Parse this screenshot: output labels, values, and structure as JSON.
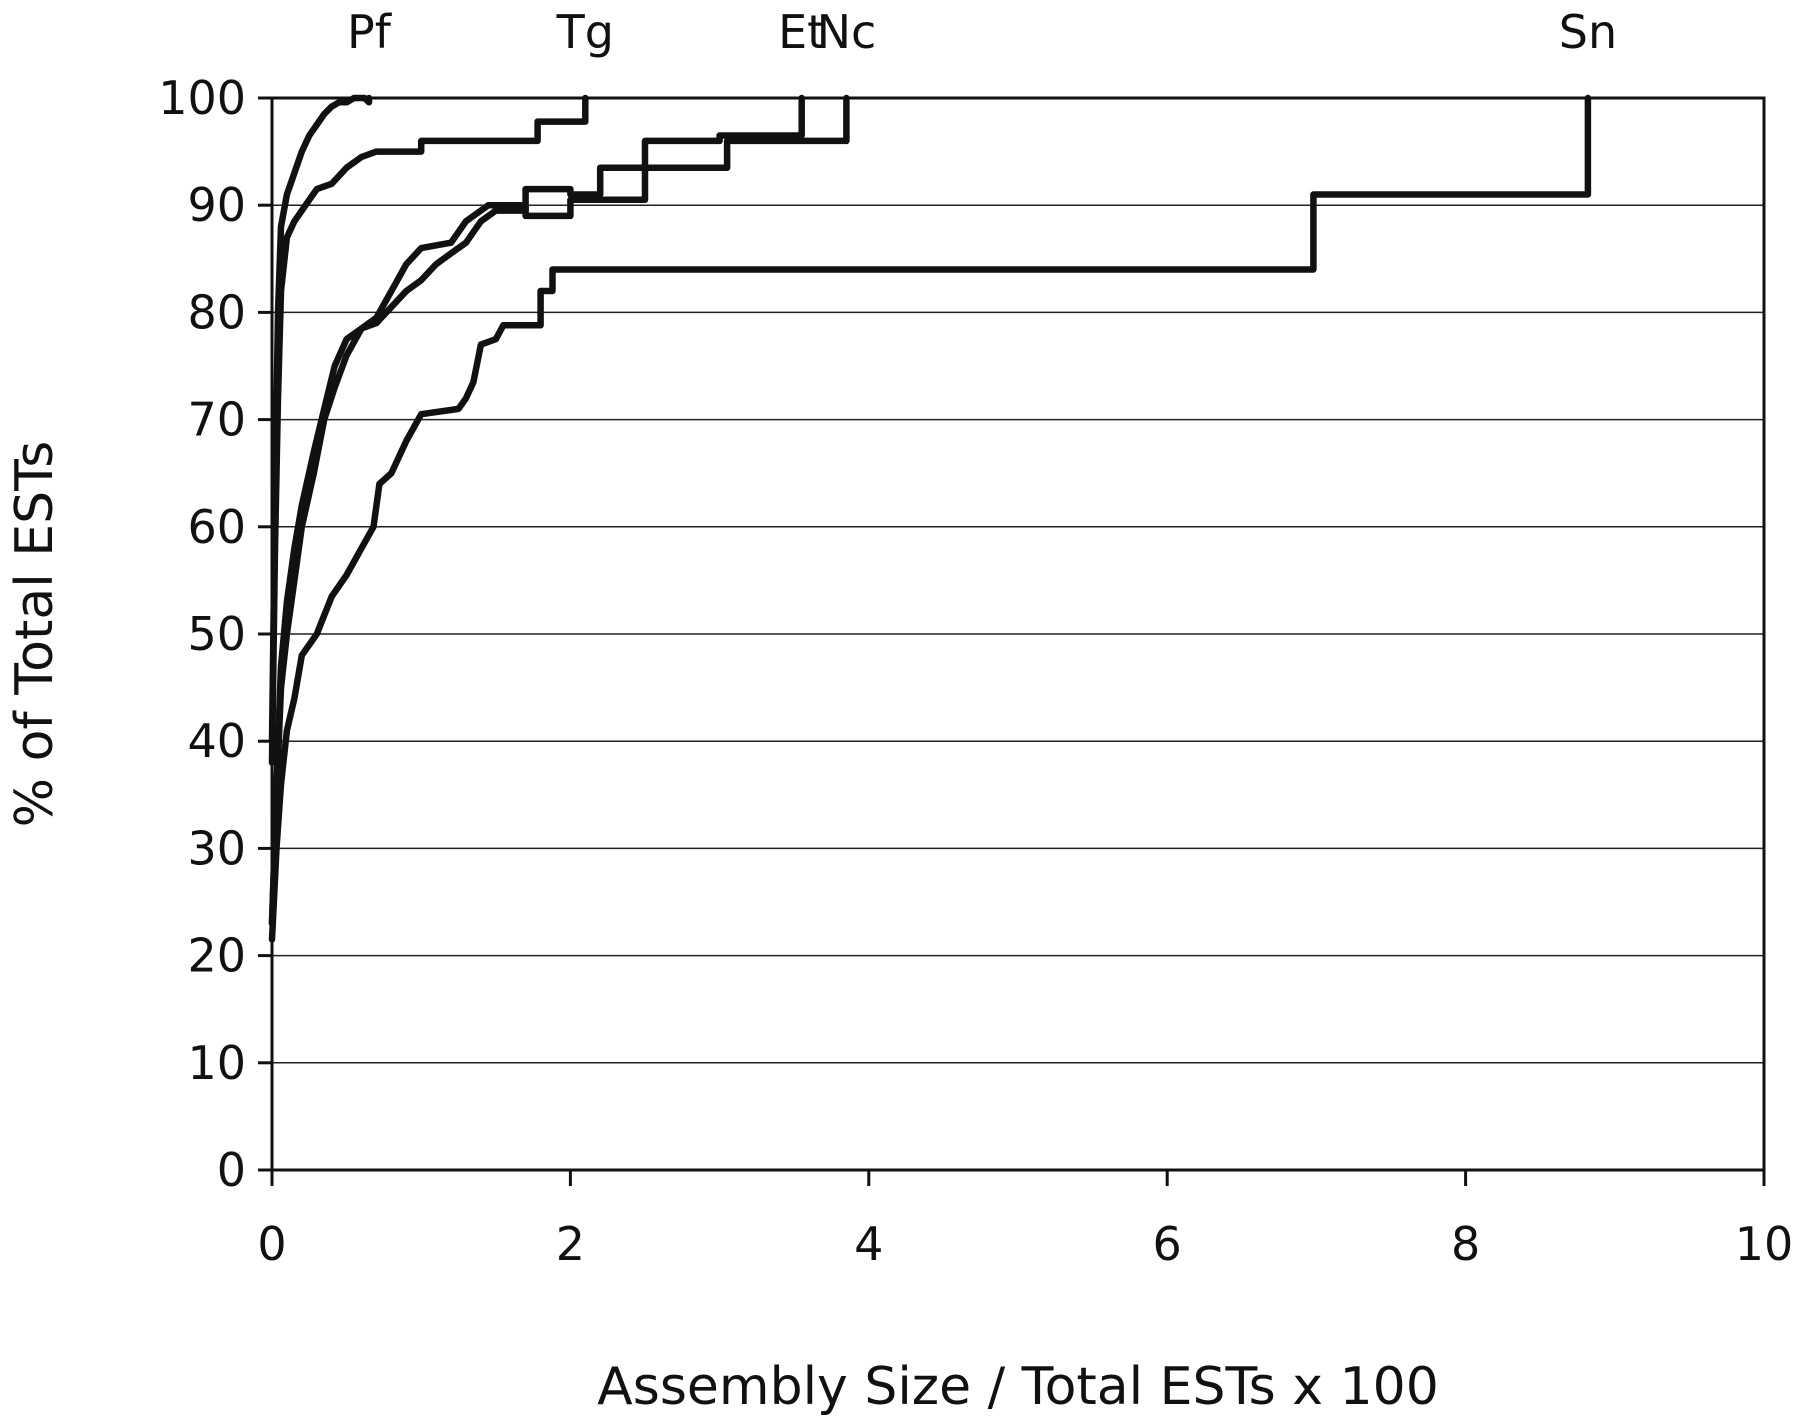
{
  "chart_data": {
    "type": "line",
    "title": "",
    "xlabel": "Assembly Size / Total ESTs x 100",
    "ylabel": "% of Total ESTs",
    "xlim": [
      0,
      10
    ],
    "ylim": [
      0,
      100
    ],
    "x_ticks": [
      "0",
      "2",
      "4",
      "6",
      "8",
      "10"
    ],
    "y_ticks": [
      "0",
      "10",
      "20",
      "30",
      "40",
      "50",
      "60",
      "70",
      "80",
      "90",
      "100"
    ],
    "grid": "horizontal",
    "legend": "none (series labelled at top of plot)",
    "series": [
      {
        "name": "Pf",
        "points": [
          [
            0,
            40
          ],
          [
            0.02,
            62
          ],
          [
            0.04,
            80
          ],
          [
            0.06,
            88
          ],
          [
            0.1,
            91
          ],
          [
            0.15,
            93
          ],
          [
            0.2,
            95
          ],
          [
            0.25,
            96.5
          ],
          [
            0.3,
            97.5
          ],
          [
            0.35,
            98.5
          ],
          [
            0.4,
            99.2
          ],
          [
            0.45,
            99.6
          ],
          [
            0.5,
            99.6
          ],
          [
            0.55,
            100
          ],
          [
            0.62,
            100
          ],
          [
            0.65,
            99.6
          ],
          [
            0.65,
            100
          ]
        ]
      },
      {
        "name": "Tg",
        "points": [
          [
            0,
            38
          ],
          [
            0.02,
            58
          ],
          [
            0.04,
            72
          ],
          [
            0.06,
            82
          ],
          [
            0.1,
            87
          ],
          [
            0.15,
            88.5
          ],
          [
            0.2,
            89.5
          ],
          [
            0.25,
            90.5
          ],
          [
            0.3,
            91.5
          ],
          [
            0.4,
            92
          ],
          [
            0.5,
            93.5
          ],
          [
            0.6,
            94.5
          ],
          [
            0.7,
            95
          ],
          [
            1.0,
            95
          ],
          [
            1.0,
            96
          ],
          [
            1.78,
            96
          ],
          [
            1.78,
            97.8
          ],
          [
            2.1,
            97.8
          ],
          [
            2.1,
            100
          ]
        ]
      },
      {
        "name": "Et",
        "points": [
          [
            0,
            23
          ],
          [
            0.03,
            35
          ],
          [
            0.06,
            45
          ],
          [
            0.1,
            50
          ],
          [
            0.15,
            55
          ],
          [
            0.2,
            60
          ],
          [
            0.28,
            65
          ],
          [
            0.35,
            70
          ],
          [
            0.42,
            73
          ],
          [
            0.5,
            76
          ],
          [
            0.6,
            78.5
          ],
          [
            0.7,
            79
          ],
          [
            0.8,
            80.5
          ],
          [
            0.9,
            82
          ],
          [
            1.0,
            83
          ],
          [
            1.1,
            84.5
          ],
          [
            1.2,
            85.5
          ],
          [
            1.3,
            86.5
          ],
          [
            1.4,
            88.5
          ],
          [
            1.5,
            89.5
          ],
          [
            1.7,
            89.5
          ],
          [
            1.7,
            91.5
          ],
          [
            2.0,
            91.5
          ],
          [
            2.0,
            91
          ],
          [
            2.2,
            91
          ],
          [
            2.2,
            93.5
          ],
          [
            2.5,
            93.5
          ],
          [
            2.5,
            96
          ],
          [
            3.0,
            96
          ],
          [
            3.0,
            96.5
          ],
          [
            3.55,
            96.5
          ],
          [
            3.55,
            100
          ]
        ]
      },
      {
        "name": "Nc",
        "points": [
          [
            0,
            23
          ],
          [
            0.03,
            36
          ],
          [
            0.06,
            47
          ],
          [
            0.1,
            53
          ],
          [
            0.15,
            58
          ],
          [
            0.2,
            62
          ],
          [
            0.28,
            67
          ],
          [
            0.35,
            71
          ],
          [
            0.42,
            75
          ],
          [
            0.5,
            77.5
          ],
          [
            0.6,
            78.5
          ],
          [
            0.7,
            79.5
          ],
          [
            0.8,
            82
          ],
          [
            0.9,
            84.5
          ],
          [
            1.0,
            86
          ],
          [
            1.2,
            86.5
          ],
          [
            1.3,
            88.5
          ],
          [
            1.45,
            90
          ],
          [
            1.7,
            90
          ],
          [
            1.7,
            89
          ],
          [
            2.0,
            89
          ],
          [
            2.0,
            90.5
          ],
          [
            2.5,
            90.5
          ],
          [
            2.5,
            93.5
          ],
          [
            3.05,
            93.5
          ],
          [
            3.05,
            96
          ],
          [
            3.85,
            96
          ],
          [
            3.85,
            100
          ]
        ]
      },
      {
        "name": "Sn",
        "points": [
          [
            0,
            21.5
          ],
          [
            0.03,
            30
          ],
          [
            0.06,
            36
          ],
          [
            0.1,
            41
          ],
          [
            0.15,
            44
          ],
          [
            0.2,
            48
          ],
          [
            0.3,
            50
          ],
          [
            0.4,
            53.5
          ],
          [
            0.5,
            55.5
          ],
          [
            0.6,
            58
          ],
          [
            0.68,
            60
          ],
          [
            0.72,
            64
          ],
          [
            0.8,
            65
          ],
          [
            0.85,
            66.5
          ],
          [
            0.9,
            68
          ],
          [
            1.0,
            70.5
          ],
          [
            1.25,
            71
          ],
          [
            1.3,
            72
          ],
          [
            1.35,
            73.5
          ],
          [
            1.4,
            77
          ],
          [
            1.5,
            77.5
          ],
          [
            1.55,
            78.8
          ],
          [
            1.8,
            78.8
          ],
          [
            1.8,
            82
          ],
          [
            1.88,
            82
          ],
          [
            1.88,
            84
          ],
          [
            6.98,
            84
          ],
          [
            6.98,
            91
          ],
          [
            8.82,
            91
          ],
          [
            8.82,
            100
          ]
        ]
      }
    ]
  }
}
